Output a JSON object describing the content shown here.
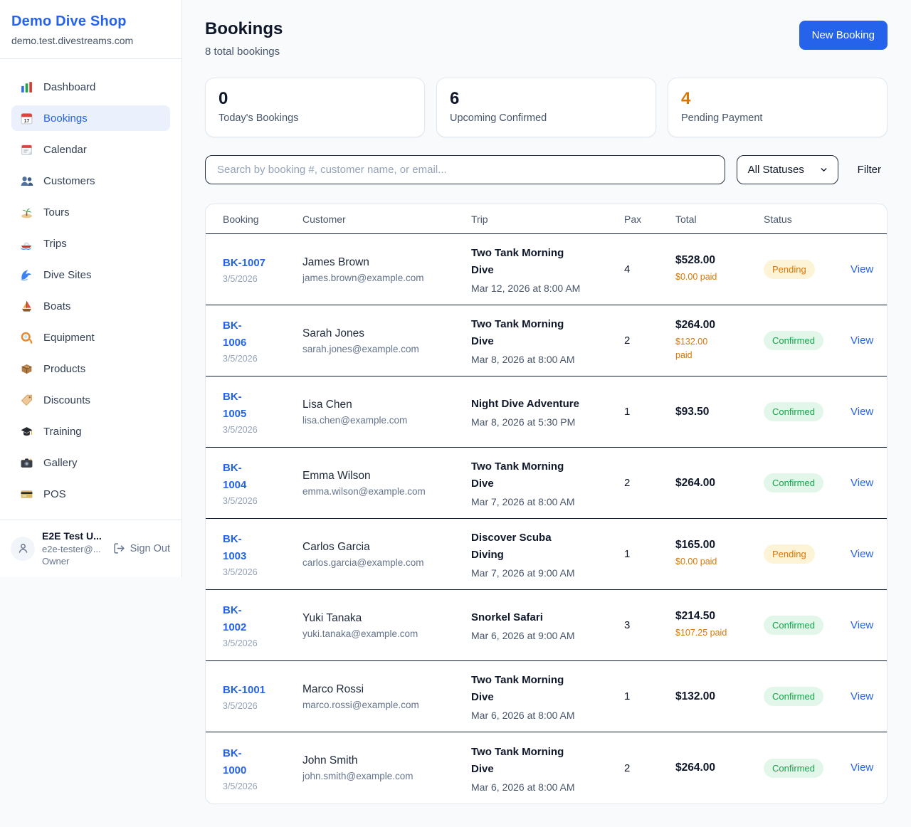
{
  "colors": {
    "accent": "#2563eb",
    "page_bg": "#f8fafc",
    "border": "#e2e8f0",
    "divider": "#111a2b",
    "orange": "#d97706",
    "green": "#16a34a",
    "pending_bg": "#fdf3d6",
    "confirmed_bg": "#e2f7ea"
  },
  "sidebar": {
    "brand": {
      "name": "Demo Dive Shop",
      "domain": "demo.test.divestreams.com"
    },
    "items": [
      {
        "label": "Dashboard",
        "icon": "bar-chart-icon",
        "active": false
      },
      {
        "label": "Bookings",
        "icon": "calendar-17-icon",
        "active": true
      },
      {
        "label": "Calendar",
        "icon": "tearoff-calendar-icon",
        "active": false
      },
      {
        "label": "Customers",
        "icon": "people-icon",
        "active": false
      },
      {
        "label": "Tours",
        "icon": "island-icon",
        "active": false
      },
      {
        "label": "Trips",
        "icon": "speedboat-icon",
        "active": false
      },
      {
        "label": "Dive Sites",
        "icon": "wave-icon",
        "active": false
      },
      {
        "label": "Boats",
        "icon": "sailboat-icon",
        "active": false
      },
      {
        "label": "Equipment",
        "icon": "diving-mask-icon",
        "active": false
      },
      {
        "label": "Products",
        "icon": "package-icon",
        "active": false
      },
      {
        "label": "Discounts",
        "icon": "tag-icon",
        "active": false
      },
      {
        "label": "Training",
        "icon": "graduation-cap-icon",
        "active": false
      },
      {
        "label": "Gallery",
        "icon": "camera-icon",
        "active": false
      },
      {
        "label": "POS",
        "icon": "credit-card-icon",
        "active": false
      }
    ],
    "user": {
      "name": "E2E Test U...",
      "email": "e2e-tester@...",
      "role": "Owner",
      "sign_out_label": "Sign Out"
    }
  },
  "header": {
    "title": "Bookings",
    "subtitle": "8 total bookings",
    "new_booking_label": "New Booking"
  },
  "stats": [
    {
      "value": "0",
      "label": "Today's Bookings",
      "value_color": "#0f172a"
    },
    {
      "value": "6",
      "label": "Upcoming Confirmed",
      "value_color": "#0f172a"
    },
    {
      "value": "4",
      "label": "Pending Payment",
      "value_color": "#d97706"
    }
  ],
  "filters": {
    "search_placeholder": "Search by booking #, customer name, or email...",
    "status_selected": "All Statuses",
    "filter_label": "Filter"
  },
  "table": {
    "columns": [
      "Booking",
      "Customer",
      "Trip",
      "Pax",
      "Total",
      "Status"
    ],
    "view_label": "View",
    "rows": [
      {
        "id": "BK-1007",
        "id_display": "BK-1007",
        "date": "3/5/2026",
        "customer": "James Brown",
        "email": "james.brown@example.com",
        "trip": "Two Tank Morning Dive",
        "trip_display": "Two Tank Morning\nDive",
        "trip_datetime": "Mar 12, 2026 at 8:00 AM",
        "pax": "4",
        "total": "$528.00",
        "paid": "$0.00 paid",
        "status": "Pending"
      },
      {
        "id": "BK-1006",
        "id_display": "BK-\n1006",
        "date": "3/5/2026",
        "customer": "Sarah Jones",
        "email": "sarah.jones@example.com",
        "trip": "Two Tank Morning Dive",
        "trip_display": "Two Tank Morning\nDive",
        "trip_datetime": "Mar 8, 2026 at 8:00 AM",
        "pax": "2",
        "total": "$264.00",
        "paid": "$132.00\npaid",
        "status": "Confirmed"
      },
      {
        "id": "BK-1005",
        "id_display": "BK-\n1005",
        "date": "3/5/2026",
        "customer": "Lisa Chen",
        "email": "lisa.chen@example.com",
        "trip": "Night Dive Adventure",
        "trip_display": "Night Dive Adventure",
        "trip_datetime": "Mar 8, 2026 at 5:30 PM",
        "pax": "1",
        "total": "$93.50",
        "paid": "",
        "status": "Confirmed"
      },
      {
        "id": "BK-1004",
        "id_display": "BK-\n1004",
        "date": "3/5/2026",
        "customer": "Emma Wilson",
        "email": "emma.wilson@example.com",
        "trip": "Two Tank Morning Dive",
        "trip_display": "Two Tank Morning\nDive",
        "trip_datetime": "Mar 7, 2026 at 8:00 AM",
        "pax": "2",
        "total": "$264.00",
        "paid": "",
        "status": "Confirmed"
      },
      {
        "id": "BK-1003",
        "id_display": "BK-\n1003",
        "date": "3/5/2026",
        "customer": "Carlos Garcia",
        "email": "carlos.garcia@example.com",
        "trip": "Discover Scuba Diving",
        "trip_display": "Discover Scuba\nDiving",
        "trip_datetime": "Mar 7, 2026 at 9:00 AM",
        "pax": "1",
        "total": "$165.00",
        "paid": "$0.00 paid",
        "status": "Pending"
      },
      {
        "id": "BK-1002",
        "id_display": "BK-\n1002",
        "date": "3/5/2026",
        "customer": "Yuki Tanaka",
        "email": "yuki.tanaka@example.com",
        "trip": "Snorkel Safari",
        "trip_display": "Snorkel Safari",
        "trip_datetime": "Mar 6, 2026 at 9:00 AM",
        "pax": "3",
        "total": "$214.50",
        "paid": "$107.25 paid",
        "status": "Confirmed"
      },
      {
        "id": "BK-1001",
        "id_display": "BK-1001",
        "date": "3/5/2026",
        "customer": "Marco Rossi",
        "email": "marco.rossi@example.com",
        "trip": "Two Tank Morning Dive",
        "trip_display": "Two Tank Morning\nDive",
        "trip_datetime": "Mar 6, 2026 at 8:00 AM",
        "pax": "1",
        "total": "$132.00",
        "paid": "",
        "status": "Confirmed"
      },
      {
        "id": "BK-1000",
        "id_display": "BK-\n1000",
        "date": "3/5/2026",
        "customer": "John Smith",
        "email": "john.smith@example.com",
        "trip": "Two Tank Morning Dive",
        "trip_display": "Two Tank Morning\nDive",
        "trip_datetime": "Mar 6, 2026 at 8:00 AM",
        "pax": "2",
        "total": "$264.00",
        "paid": "",
        "status": "Confirmed"
      }
    ]
  }
}
